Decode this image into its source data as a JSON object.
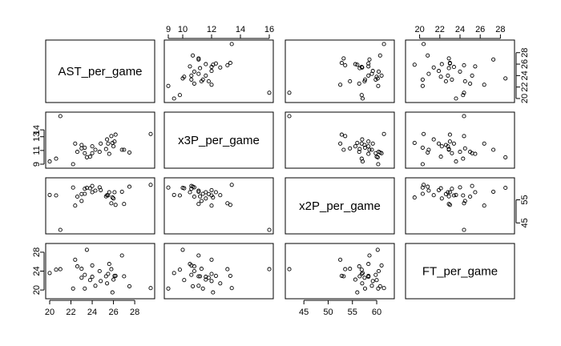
{
  "chart_data": {
    "type": "scatter",
    "variables": [
      {
        "name": "AST_per_game",
        "range": [
          20,
          29.5
        ],
        "ticks": [
          20,
          22,
          24,
          26,
          28
        ],
        "values": [
          20.0,
          29.5,
          20.6,
          21.0,
          22.2,
          23.0,
          23.3,
          23.0,
          22.6,
          24.0,
          23.5,
          23.8,
          24.0,
          24.3,
          24.8,
          25.4,
          25.8,
          25.9,
          26.0,
          26.1,
          25.6,
          25.3,
          26.2,
          26.8,
          27.0,
          27.5,
          25.5,
          24.7,
          23.3,
          22.4
        ]
      },
      {
        "name": "x3P_per_game",
        "range": [
          9,
          16
        ],
        "ticks": [
          9,
          11,
          13,
          14
        ],
        "values": [
          9.4,
          13.4,
          9.8,
          16.0,
          9.0,
          11.8,
          10.6,
          11.3,
          10.8,
          11.6,
          10.0,
          10.1,
          10.6,
          11.1,
          12.0,
          12.6,
          13.1,
          12.1,
          11.6,
          12.3,
          10.5,
          11.2,
          13.3,
          11.1,
          11.1,
          10.7,
          12.0,
          10.8,
          11.4,
          12.0
        ]
      },
      {
        "name": "x2P_per_game",
        "range": [
          42,
          62.8
        ],
        "ticks": [
          45,
          50,
          55,
          60
        ],
        "values": [
          57.1,
          61.5,
          56.9,
          42.0,
          60.3,
          57.5,
          59.8,
          54.5,
          56.4,
          58.3,
          60.2,
          60.0,
          61.0,
          59.0,
          59.2,
          57.0,
          53.5,
          56.0,
          55.6,
          58.3,
          58.3,
          56.5,
          52.8,
          58.5,
          53.2,
          60.7,
          56.9,
          60.4,
          57.6,
          52.5
        ]
      },
      {
        "name": "FT_per_game",
        "range": [
          19,
          29
        ],
        "ticks": [
          20,
          22,
          24,
          26,
          28
        ],
        "values": [
          23.6,
          20.4,
          24.3,
          24.4,
          20.3,
          22.6,
          23.2,
          24.5,
          25.0,
          22.8,
          28.5,
          22.1,
          25.2,
          20.9,
          21.9,
          21.4,
          24.4,
          19.5,
          22.2,
          23.0,
          25.5,
          22.9,
          23.0,
          27.3,
          22.9,
          20.8,
          23.4,
          24.0,
          20.3,
          26.4
        ]
      }
    ],
    "axes": {
      "top": [
        {
          "panel": 1,
          "labels": [
            "9",
            "10",
            "12",
            "14",
            "16"
          ],
          "values": [
            9,
            10,
            12,
            14,
            16
          ]
        },
        {
          "panel": 3,
          "labels": [
            "20",
            "22",
            "24",
            "26",
            "28"
          ],
          "values": [
            20,
            22,
            24,
            26,
            28
          ]
        }
      ],
      "bottom": [
        {
          "panel": 0,
          "labels": [
            "20",
            "22",
            "24",
            "26",
            "28"
          ],
          "values": [
            20,
            22,
            24,
            26,
            28
          ]
        },
        {
          "panel": 2,
          "labels": [
            "45",
            "50",
            "55",
            "60"
          ],
          "values": [
            45,
            50,
            55,
            60
          ]
        }
      ],
      "left": [
        {
          "panel": 1,
          "labels": [
            "9",
            "11",
            "13",
            "14"
          ],
          "values": [
            9,
            11,
            13,
            14
          ]
        },
        {
          "panel": 3,
          "labels": [
            "20",
            "24",
            "28"
          ],
          "values": [
            20,
            24,
            28
          ]
        }
      ],
      "right": [
        {
          "panel": 0,
          "labels": [
            "20",
            "22",
            "24",
            "26",
            "28"
          ],
          "values": [
            20,
            22,
            24,
            26,
            28
          ]
        },
        {
          "panel": 2,
          "labels": [
            "45",
            "55"
          ],
          "values": [
            45,
            55
          ]
        }
      ]
    },
    "title": "",
    "grid": false,
    "legend": "none"
  }
}
